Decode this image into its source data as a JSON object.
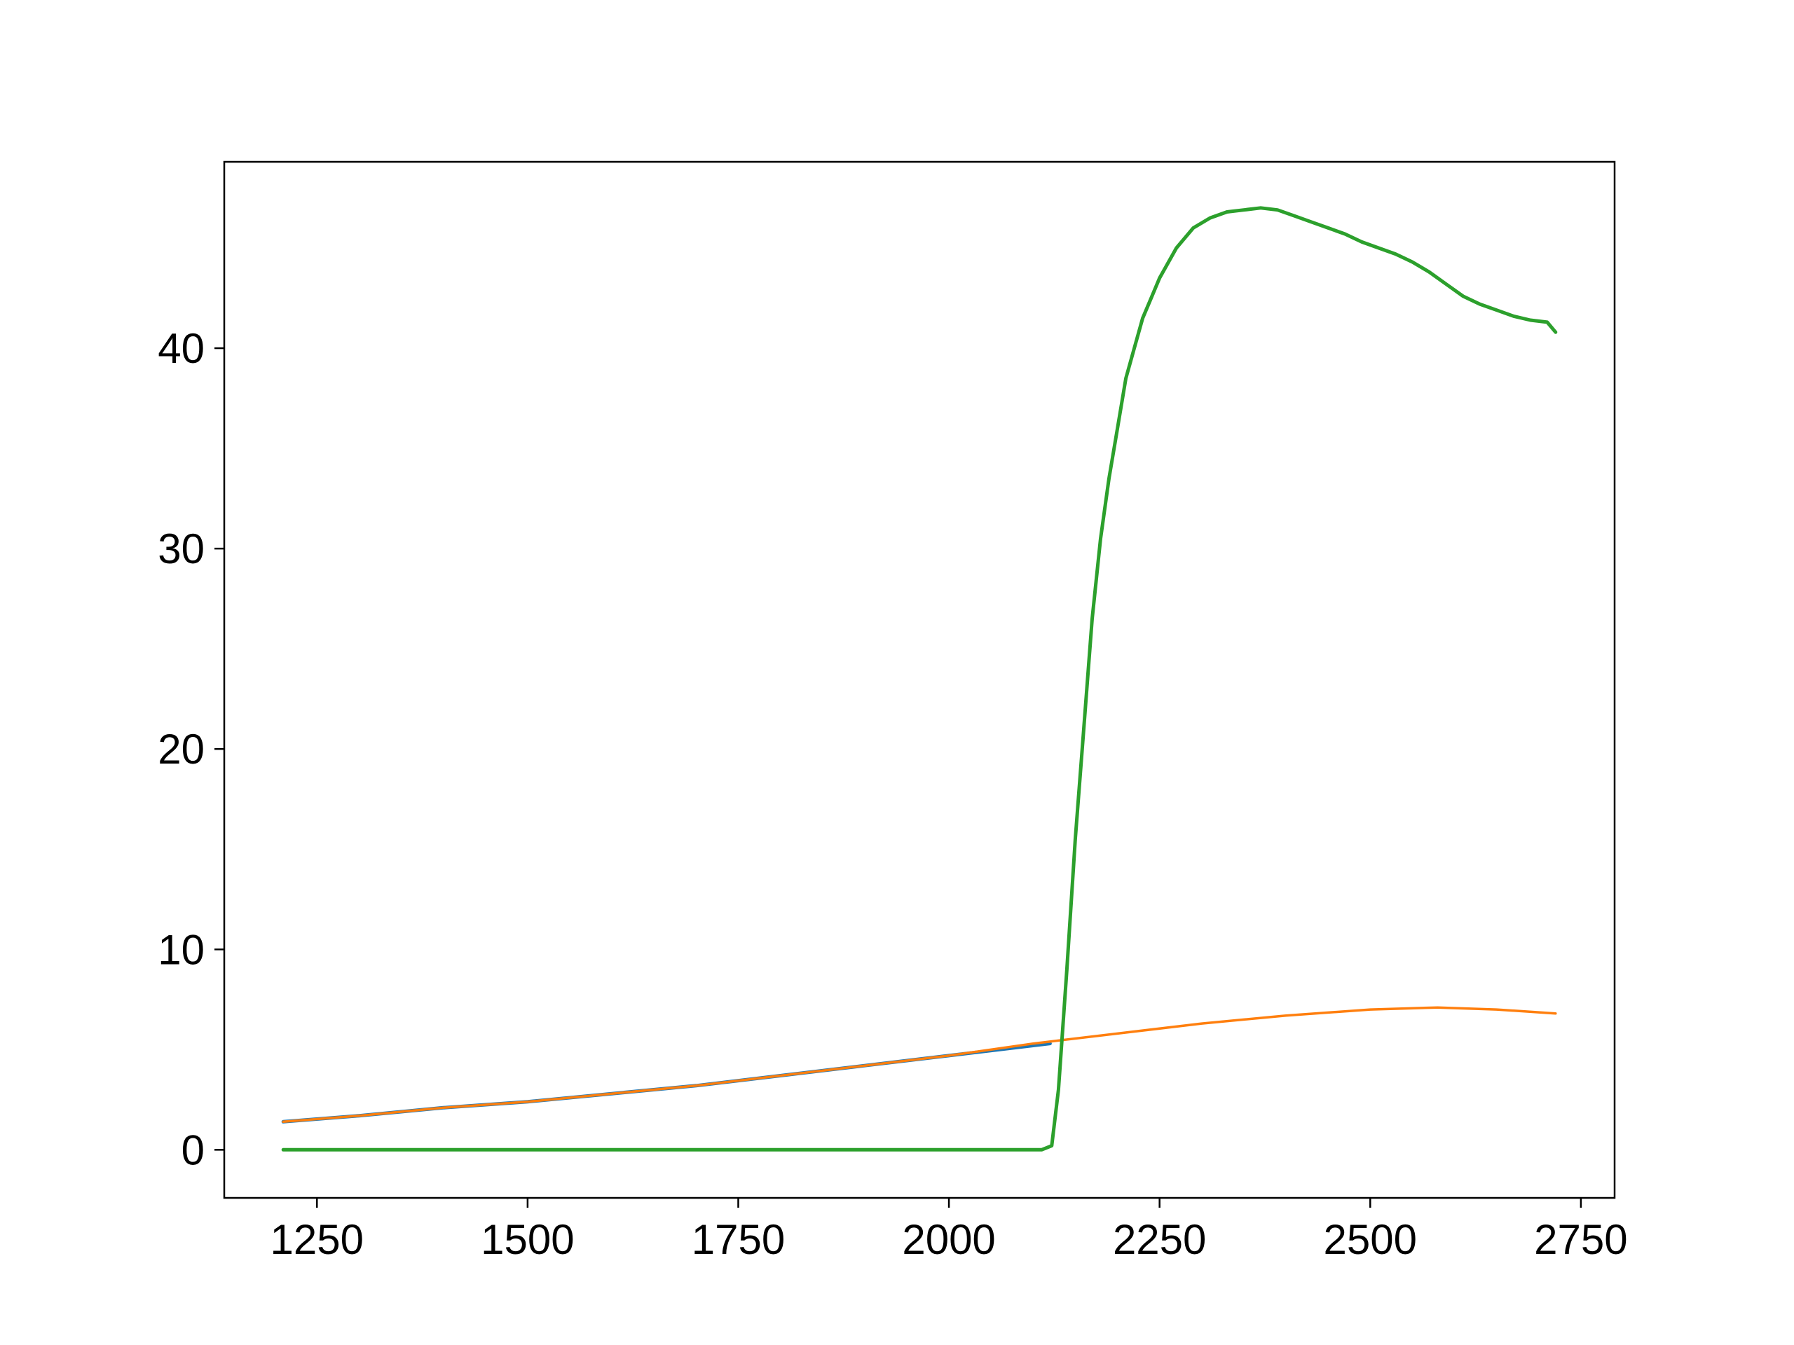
{
  "chart_data": {
    "type": "line",
    "title": "",
    "xlabel": "",
    "ylabel": "",
    "xlim": [
      1140,
      2790
    ],
    "ylim": [
      -2.4,
      49.3
    ],
    "grid": false,
    "legend": "none",
    "x_ticks": [
      1250,
      1500,
      1750,
      2000,
      2250,
      2500,
      2750
    ],
    "x_tick_labels": [
      "1250",
      "1500",
      "1750",
      "2000",
      "2250",
      "2500",
      "2750"
    ],
    "y_ticks": [
      0,
      10,
      20,
      30,
      40
    ],
    "y_tick_labels": [
      "0",
      "10",
      "20",
      "30",
      "40"
    ],
    "series": [
      {
        "color": "#1f77b4",
        "x": [
          1210,
          1300,
          1400,
          1500,
          1600,
          1700,
          1800,
          1900,
          2000,
          2060,
          2120
        ],
        "y": [
          1.4,
          1.7,
          2.1,
          2.4,
          2.8,
          3.2,
          3.7,
          4.2,
          4.7,
          5.0,
          5.3
        ]
      },
      {
        "color": "#ff7f0e",
        "x": [
          1210,
          1300,
          1400,
          1500,
          1600,
          1700,
          1800,
          1900,
          2000,
          2100,
          2200,
          2300,
          2400,
          2500,
          2580,
          2650,
          2720
        ],
        "y": [
          1.4,
          1.7,
          2.1,
          2.4,
          2.8,
          3.2,
          3.7,
          4.2,
          4.7,
          5.3,
          5.8,
          6.3,
          6.7,
          7.0,
          7.1,
          7.0,
          6.8
        ]
      },
      {
        "color": "#2ca02c",
        "x": [
          1210,
          1400,
          1600,
          1800,
          2000,
          2110,
          2122,
          2130,
          2140,
          2150,
          2160,
          2170,
          2180,
          2190,
          2200,
          2210,
          2220,
          2230,
          2240,
          2250,
          2270,
          2290,
          2310,
          2330,
          2350,
          2370,
          2390,
          2410,
          2430,
          2450,
          2470,
          2490,
          2510,
          2530,
          2550,
          2570,
          2590,
          2610,
          2630,
          2650,
          2670,
          2690,
          2710,
          2720
        ],
        "y": [
          0,
          0,
          0,
          0,
          0,
          0,
          0.2,
          3.0,
          9.0,
          15.5,
          21.0,
          26.5,
          30.5,
          33.5,
          36.0,
          38.5,
          40.0,
          41.5,
          42.5,
          43.5,
          45.0,
          46.0,
          46.5,
          46.8,
          46.9,
          47.0,
          46.9,
          46.6,
          46.3,
          46.0,
          45.7,
          45.3,
          45.0,
          44.7,
          44.3,
          43.8,
          43.2,
          42.6,
          42.2,
          41.9,
          41.6,
          41.4,
          41.3,
          40.8
        ]
      }
    ]
  }
}
